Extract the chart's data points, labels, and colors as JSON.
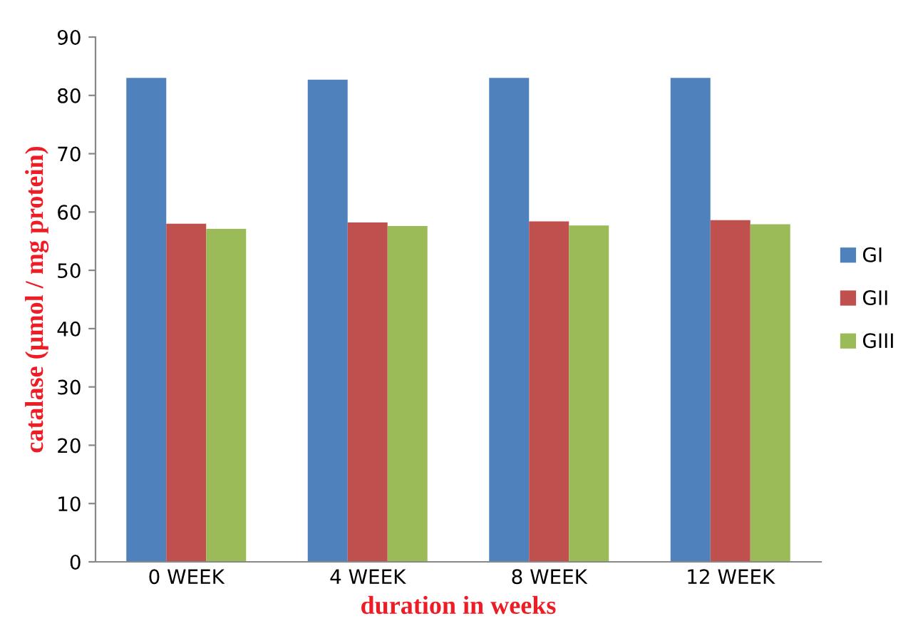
{
  "chart_data": {
    "type": "bar",
    "xlabel": "duration in weeks",
    "ylabel": "catalase (µmol / mg protein)",
    "categories": [
      "0 WEEK",
      "4 WEEK",
      "8 WEEK",
      "12 WEEK"
    ],
    "series": [
      {
        "name": "GI",
        "color": "#4f81bd",
        "values": [
          83.0,
          82.7,
          83.0,
          83.0
        ]
      },
      {
        "name": "GII",
        "color": "#c0504d",
        "values": [
          58.0,
          58.2,
          58.4,
          58.6
        ]
      },
      {
        "name": "GIII",
        "color": "#9bbb59",
        "values": [
          57.1,
          57.6,
          57.7,
          57.9
        ]
      }
    ],
    "ylim": [
      0,
      90
    ],
    "yticks": [
      0,
      10,
      20,
      30,
      40,
      50,
      60,
      70,
      80,
      90
    ],
    "grid": false,
    "legend": "right"
  }
}
